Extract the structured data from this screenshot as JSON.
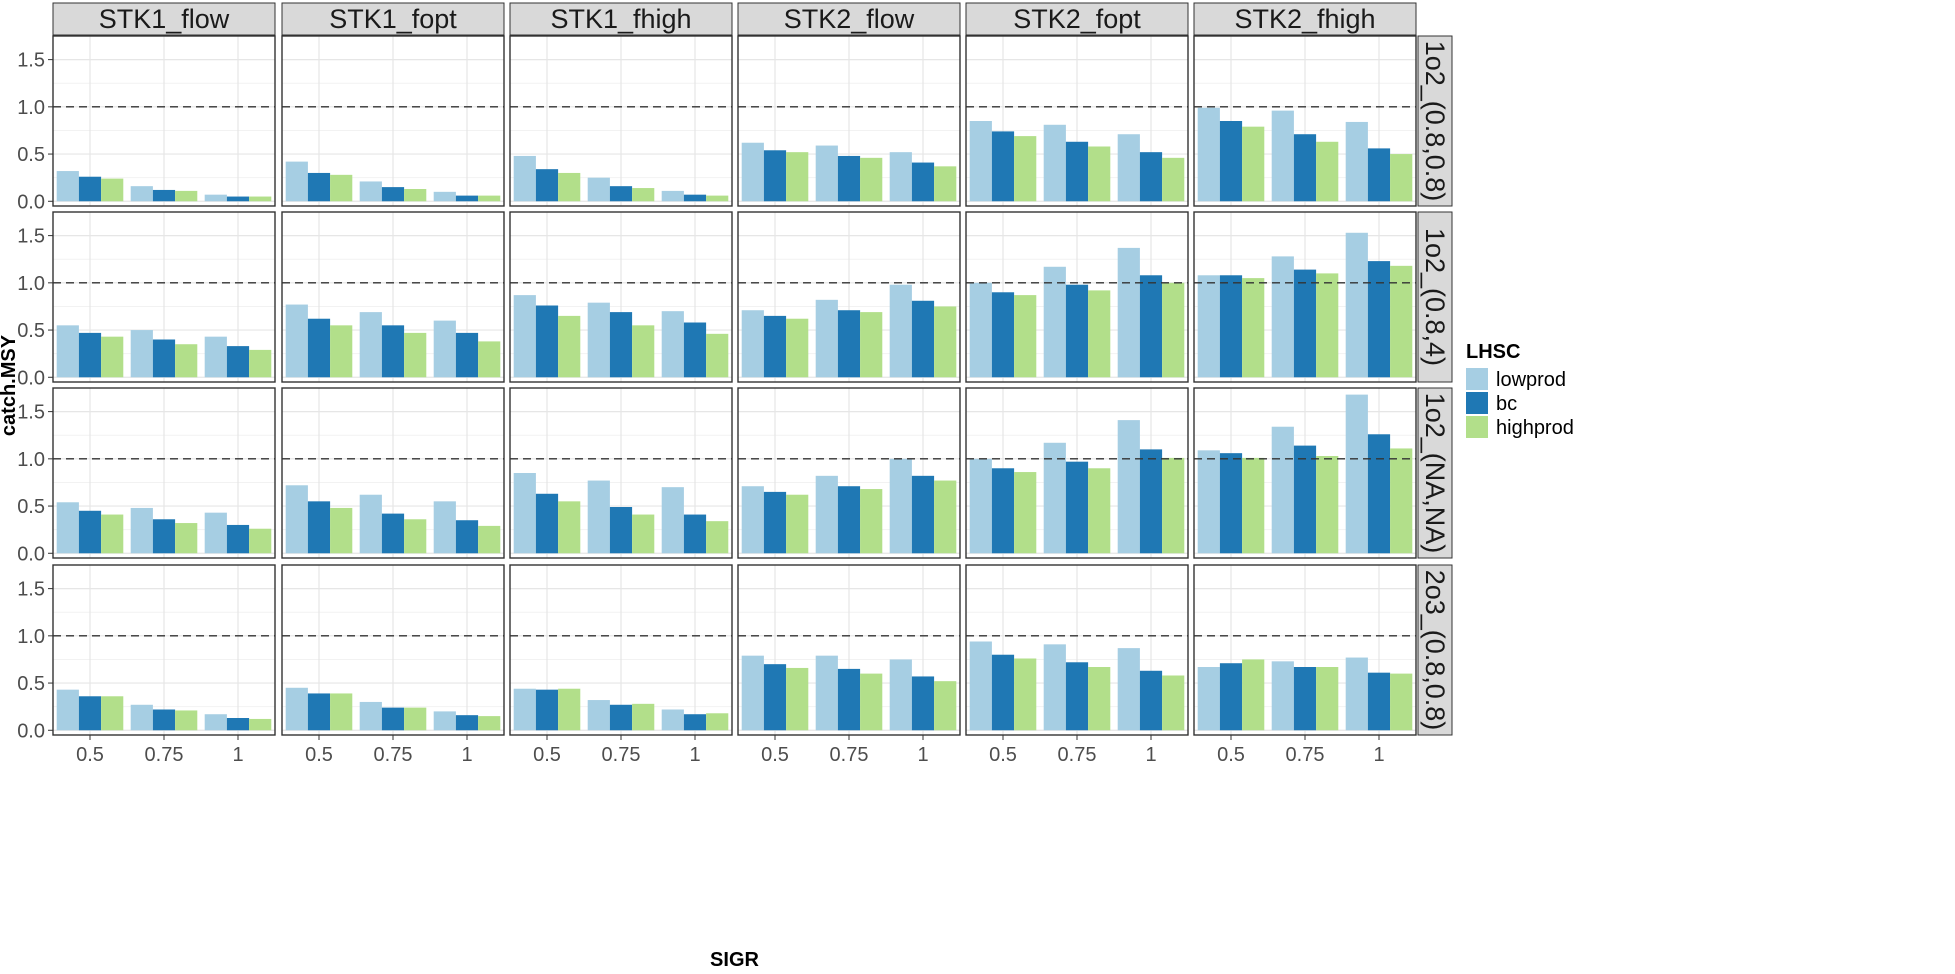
{
  "chart_data": {
    "type": "bar",
    "xlabel": "SIGR",
    "ylabel": "catch.MSY",
    "categories": [
      "0.5",
      "0.75",
      "1"
    ],
    "ylim": [
      -0.05,
      1.75
    ],
    "yticks": [
      0.0,
      0.5,
      1.0,
      1.5
    ],
    "ytick_labels": [
      "0.0",
      "0.5",
      "1.0",
      "1.5"
    ],
    "reference_line": 1.0,
    "legend": {
      "title": "LHSC",
      "position": "right",
      "items": [
        {
          "name": "lowprod",
          "color": "#a6cee3"
        },
        {
          "name": "bc",
          "color": "#1f78b4"
        },
        {
          "name": "highprod",
          "color": "#b2df8a"
        }
      ]
    },
    "col_labels": [
      "STK1_flow",
      "STK1_fopt",
      "STK1_fhigh",
      "STK2_flow",
      "STK2_fopt",
      "STK2_fhigh"
    ],
    "row_labels": [
      "1o2_(0.8,0.8)",
      "1o2_(0.8,4)",
      "1o2_(NA,NA)",
      "2o3_(0.8,0.8)"
    ],
    "panels": [
      [
        [
          [
            0.32,
            0.26,
            0.24
          ],
          [
            0.16,
            0.12,
            0.11
          ],
          [
            0.07,
            0.05,
            0.05
          ]
        ],
        [
          [
            0.42,
            0.3,
            0.28
          ],
          [
            0.21,
            0.15,
            0.13
          ],
          [
            0.1,
            0.06,
            0.06
          ]
        ],
        [
          [
            0.48,
            0.34,
            0.3
          ],
          [
            0.25,
            0.16,
            0.14
          ],
          [
            0.11,
            0.07,
            0.06
          ]
        ],
        [
          [
            0.62,
            0.54,
            0.52
          ],
          [
            0.59,
            0.48,
            0.46
          ],
          [
            0.52,
            0.41,
            0.37
          ]
        ],
        [
          [
            0.85,
            0.74,
            0.69
          ],
          [
            0.81,
            0.63,
            0.58
          ],
          [
            0.71,
            0.52,
            0.46
          ]
        ],
        [
          [
            0.99,
            0.85,
            0.79
          ],
          [
            0.96,
            0.71,
            0.63
          ],
          [
            0.84,
            0.56,
            0.5
          ]
        ]
      ],
      [
        [
          [
            0.55,
            0.47,
            0.43
          ],
          [
            0.5,
            0.4,
            0.35
          ],
          [
            0.43,
            0.33,
            0.29
          ]
        ],
        [
          [
            0.77,
            0.62,
            0.55
          ],
          [
            0.69,
            0.55,
            0.47
          ],
          [
            0.6,
            0.47,
            0.38
          ]
        ],
        [
          [
            0.87,
            0.76,
            0.65
          ],
          [
            0.79,
            0.69,
            0.55
          ],
          [
            0.7,
            0.58,
            0.46
          ]
        ],
        [
          [
            0.71,
            0.65,
            0.62
          ],
          [
            0.82,
            0.71,
            0.69
          ],
          [
            0.98,
            0.81,
            0.75
          ]
        ],
        [
          [
            1.0,
            0.9,
            0.87
          ],
          [
            1.17,
            0.98,
            0.92
          ],
          [
            1.37,
            1.08,
            1.0
          ]
        ],
        [
          [
            1.08,
            1.08,
            1.05
          ],
          [
            1.28,
            1.14,
            1.1
          ],
          [
            1.53,
            1.23,
            1.18
          ]
        ]
      ],
      [
        [
          [
            0.54,
            0.45,
            0.41
          ],
          [
            0.48,
            0.36,
            0.32
          ],
          [
            0.43,
            0.3,
            0.26
          ]
        ],
        [
          [
            0.72,
            0.55,
            0.48
          ],
          [
            0.62,
            0.42,
            0.36
          ],
          [
            0.55,
            0.35,
            0.29
          ]
        ],
        [
          [
            0.85,
            0.63,
            0.55
          ],
          [
            0.77,
            0.49,
            0.41
          ],
          [
            0.7,
            0.41,
            0.34
          ]
        ],
        [
          [
            0.71,
            0.65,
            0.62
          ],
          [
            0.82,
            0.71,
            0.68
          ],
          [
            1.0,
            0.82,
            0.77
          ]
        ],
        [
          [
            1.0,
            0.9,
            0.86
          ],
          [
            1.17,
            0.97,
            0.9
          ],
          [
            1.41,
            1.1,
            1.01
          ]
        ],
        [
          [
            1.09,
            1.06,
            1.01
          ],
          [
            1.34,
            1.14,
            1.03
          ],
          [
            1.68,
            1.26,
            1.11
          ]
        ]
      ],
      [
        [
          [
            0.43,
            0.36,
            0.36
          ],
          [
            0.27,
            0.22,
            0.21
          ],
          [
            0.17,
            0.13,
            0.12
          ]
        ],
        [
          [
            0.45,
            0.39,
            0.39
          ],
          [
            0.3,
            0.24,
            0.24
          ],
          [
            0.2,
            0.16,
            0.15
          ]
        ],
        [
          [
            0.44,
            0.43,
            0.44
          ],
          [
            0.32,
            0.27,
            0.28
          ],
          [
            0.22,
            0.17,
            0.18
          ]
        ],
        [
          [
            0.79,
            0.7,
            0.66
          ],
          [
            0.79,
            0.65,
            0.6
          ],
          [
            0.75,
            0.57,
            0.52
          ]
        ],
        [
          [
            0.94,
            0.8,
            0.76
          ],
          [
            0.91,
            0.72,
            0.67
          ],
          [
            0.87,
            0.63,
            0.58
          ]
        ],
        [
          [
            0.67,
            0.71,
            0.75
          ],
          [
            0.73,
            0.67,
            0.67
          ],
          [
            0.77,
            0.61,
            0.6
          ]
        ]
      ]
    ]
  }
}
